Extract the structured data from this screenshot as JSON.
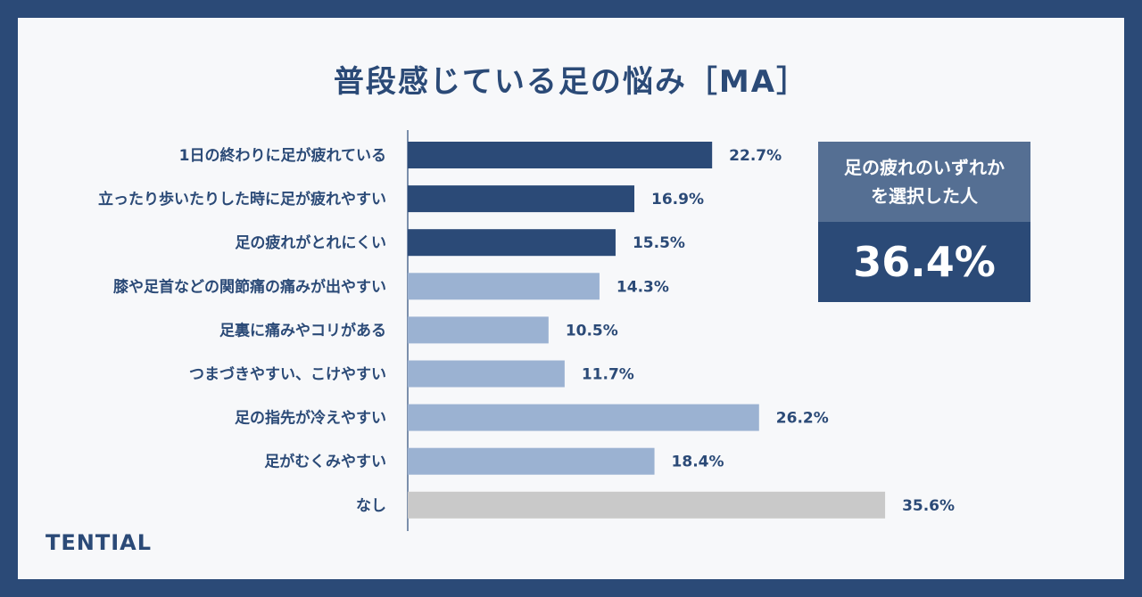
{
  "chart_data": {
    "type": "bar",
    "orientation": "horizontal",
    "title": "普段感じている足の悩み［MA］",
    "categories": [
      "1日の終わりに足が疲れている",
      "立ったり歩いたりした時に足が疲れやすい",
      "足の疲れがとれにくい",
      "膝や足首などの関節痛の痛みが出やすい",
      "足裏に痛みやコリがある",
      "つまづきやすい、こけやすい",
      "足の指先が冷えやすい",
      "足がむくみやすい",
      "なし"
    ],
    "values": [
      22.7,
      16.9,
      15.5,
      14.3,
      10.5,
      11.7,
      26.2,
      18.4,
      35.6
    ],
    "value_labels": [
      "22.7%",
      "16.9%",
      "15.5%",
      "14.3%",
      "10.5%",
      "11.7%",
      "26.2%",
      "18.4%",
      "35.6%"
    ],
    "bar_colors": [
      "#2b4a77",
      "#2b4a77",
      "#2b4a77",
      "#9bb2d2",
      "#9bb2d2",
      "#9bb2d2",
      "#9bb2d2",
      "#9bb2d2",
      "#c9c9c9"
    ],
    "xlim": [
      0,
      40
    ],
    "grid": false,
    "legend": "none"
  },
  "callout": {
    "heading_line1": "足の疲れのいずれか",
    "heading_line2": "を選択した人",
    "value": "36.4%"
  },
  "brand": {
    "logo_text": "TENTIAL"
  },
  "colors": {
    "background": "#2b4a77",
    "card": "#f7f8fa",
    "dark_bar": "#2b4a77",
    "light_bar": "#9bb2d2",
    "none_bar": "#c9c9c9",
    "callout_head": "#556f93"
  }
}
